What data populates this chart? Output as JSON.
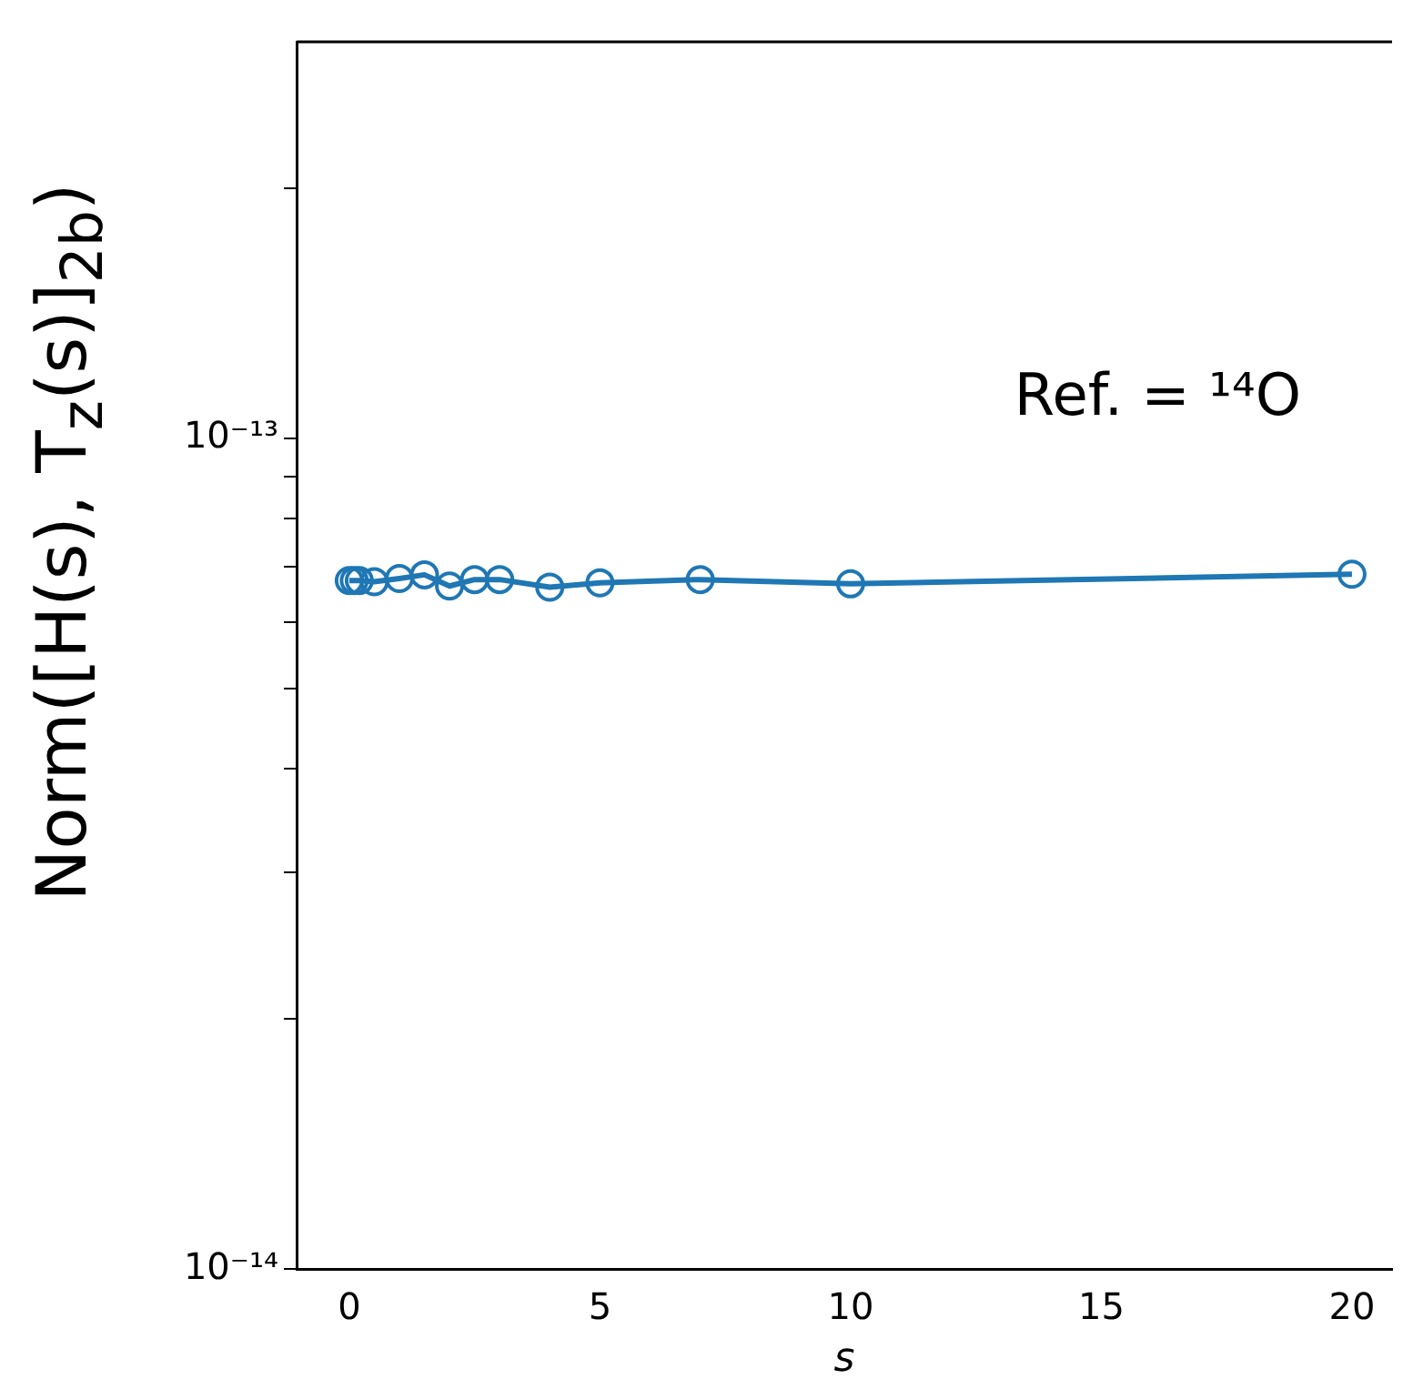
{
  "chart_data": {
    "type": "line",
    "xlabel": "s",
    "ylabel": "Norm([H(s), T$_{z}$(s)]$_{2b}$)",
    "annotations": [
      "Ref. = ¹⁴O"
    ],
    "series": [
      {
        "color": "#1f77b4",
        "x": [
          0,
          0.1,
          0.2,
          0.5,
          1,
          1.5,
          2,
          2.5,
          3,
          4,
          5,
          7,
          10,
          20
        ],
        "values": [
          6.74e-14,
          6.74e-14,
          6.74e-14,
          6.72e-14,
          6.78e-14,
          6.85e-14,
          6.64e-14,
          6.76e-14,
          6.76e-14,
          6.62e-14,
          6.7e-14,
          6.76e-14,
          6.68e-14,
          6.86e-14
        ]
      }
    ],
    "xlim": [
      -1.05,
      20.8
    ],
    "xticks": [
      0,
      5,
      10,
      15,
      20
    ],
    "ylim": [
      1e-14,
      3e-13
    ],
    "log": true,
    "yticks": [
      {
        "value": 1e-14,
        "label": "10⁻¹⁴"
      },
      {
        "value": 2e-14,
        "label": null
      },
      {
        "value": 3e-14,
        "label": null
      },
      {
        "value": 4e-14,
        "label": null
      },
      {
        "value": 5e-14,
        "label": null
      },
      {
        "value": 6e-14,
        "label": null
      },
      {
        "value": 7e-14,
        "label": null
      },
      {
        "value": 8e-14,
        "label": null
      },
      {
        "value": 9e-14,
        "label": null
      },
      {
        "value": 1e-13,
        "label": "10⁻¹³"
      },
      {
        "value": 2e-13,
        "label": null
      }
    ],
    "grid": false,
    "legend": false,
    "marker": "circle",
    "line_style": "solid"
  }
}
